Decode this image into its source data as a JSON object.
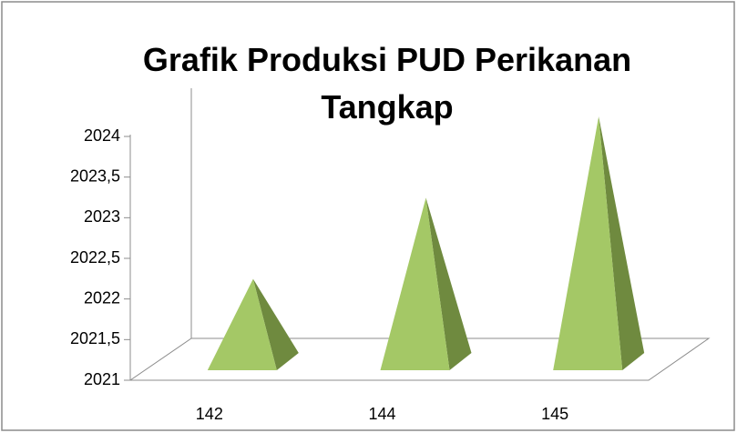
{
  "chart_data": {
    "type": "pyramid",
    "title": "Grafik Produksi PUD Perikanan Tangkap",
    "categories": [
      "142",
      "144",
      "145"
    ],
    "values": [
      2022,
      2023,
      2024
    ],
    "color": "#a4c866",
    "side_color": "#6f8a3f",
    "ylim": [
      2021,
      2024
    ],
    "yticks": [
      2021,
      {
        "value": 2021.5,
        "label": "2021,5"
      },
      2022,
      {
        "value": 2022.5,
        "label": "2022,5"
      },
      2023,
      {
        "value": 2023.5,
        "label": "2023,5"
      },
      2024
    ],
    "grid": false
  }
}
